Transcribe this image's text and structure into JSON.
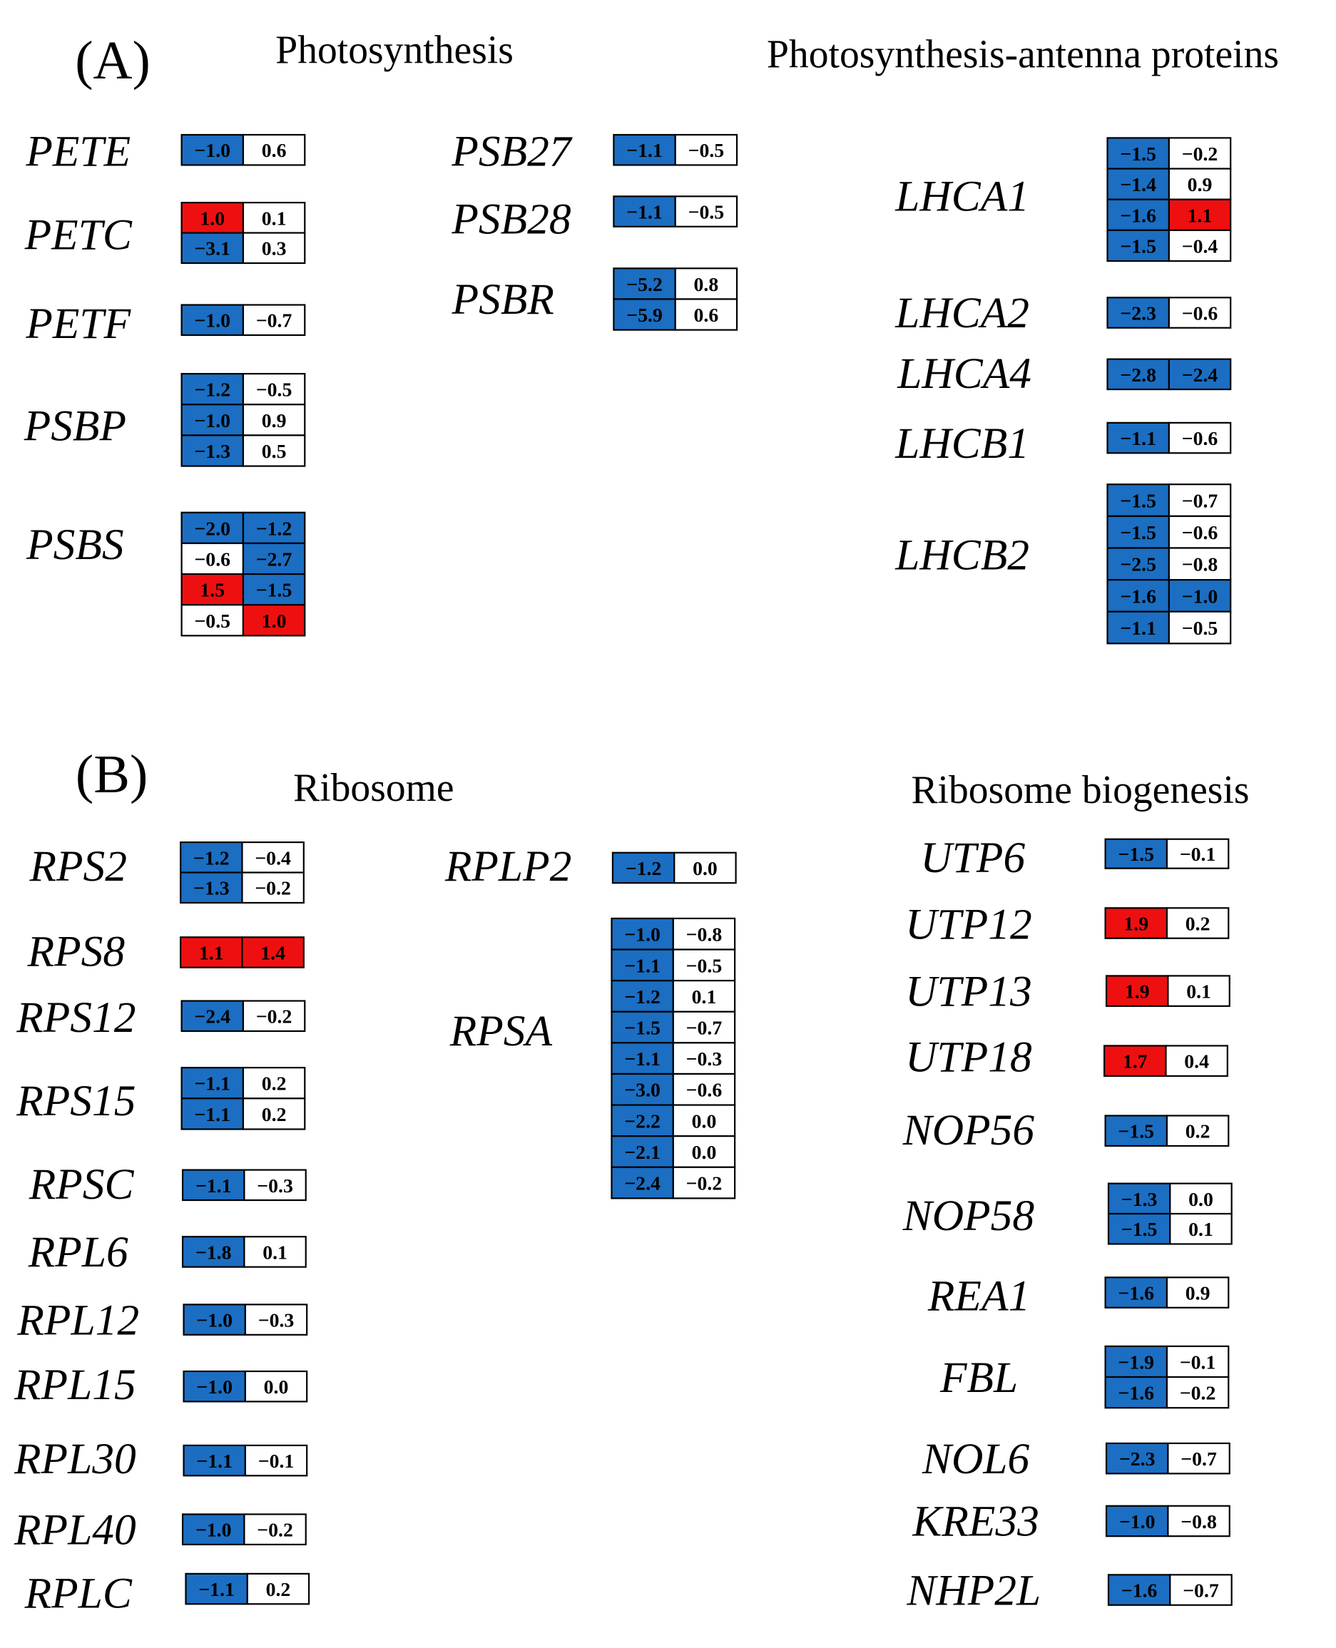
{
  "panels": [
    {
      "label": "(A)",
      "sections": [
        {
          "title": "Photosynthesis",
          "genes": [
            {
              "name": "PETE",
              "rows": [
                [
                  "−1.0",
                  "0.6"
                ]
              ]
            },
            {
              "name": "PETC",
              "rows": [
                [
                  "1.0",
                  "0.1"
                ],
                [
                  "−3.1",
                  "0.3"
                ]
              ]
            },
            {
              "name": "PETF",
              "rows": [
                [
                  "−1.0",
                  "−0.7"
                ]
              ]
            },
            {
              "name": "PSBP",
              "rows": [
                [
                  "−1.2",
                  "−0.5"
                ],
                [
                  "−1.0",
                  "0.9"
                ],
                [
                  "−1.3",
                  "0.5"
                ]
              ]
            },
            {
              "name": "PSBS",
              "rows": [
                [
                  "−2.0",
                  "−1.2"
                ],
                [
                  "−0.6",
                  "−2.7"
                ],
                [
                  "1.5",
                  "−1.5"
                ],
                [
                  "−0.5",
                  "1.0"
                ]
              ]
            },
            {
              "name": "PSB27",
              "rows": [
                [
                  "−1.1",
                  "−0.5"
                ]
              ]
            },
            {
              "name": "PSB28",
              "rows": [
                [
                  "−1.1",
                  "−0.5"
                ]
              ]
            },
            {
              "name": "PSBR",
              "rows": [
                [
                  "−5.2",
                  "0.8"
                ],
                [
                  "−5.9",
                  "0.6"
                ]
              ]
            }
          ]
        },
        {
          "title": "Photosynthesis-antenna proteins",
          "genes": [
            {
              "name": "LHCA1",
              "rows": [
                [
                  "−1.5",
                  "−0.2"
                ],
                [
                  "−1.4",
                  "0.9"
                ],
                [
                  "−1.6",
                  "1.1"
                ],
                [
                  "−1.5",
                  "−0.4"
                ]
              ]
            },
            {
              "name": "LHCA2",
              "rows": [
                [
                  "−2.3",
                  "−0.6"
                ]
              ]
            },
            {
              "name": "LHCA4",
              "rows": [
                [
                  "−2.8",
                  "−2.4"
                ]
              ]
            },
            {
              "name": "LHCB1",
              "rows": [
                [
                  "−1.1",
                  "−0.6"
                ]
              ]
            },
            {
              "name": "LHCB2",
              "rows": [
                [
                  "−1.5",
                  "−0.7"
                ],
                [
                  "−1.5",
                  "−0.6"
                ],
                [
                  "−2.5",
                  "−0.8"
                ],
                [
                  "−1.6",
                  "−1.0"
                ],
                [
                  "−1.1",
                  "−0.5"
                ]
              ]
            }
          ]
        }
      ]
    },
    {
      "label": "(B)",
      "sections": [
        {
          "title": "Ribosome",
          "genes": [
            {
              "name": "RPS2",
              "rows": [
                [
                  "−1.2",
                  "−0.4"
                ],
                [
                  "−1.3",
                  "−0.2"
                ]
              ]
            },
            {
              "name": "RPS8",
              "rows": [
                [
                  "1.1",
                  "1.4"
                ]
              ]
            },
            {
              "name": "RPS12",
              "rows": [
                [
                  "−2.4",
                  "−0.2"
                ]
              ]
            },
            {
              "name": "RPS15",
              "rows": [
                [
                  "−1.1",
                  "0.2"
                ],
                [
                  "−1.1",
                  "0.2"
                ]
              ]
            },
            {
              "name": "RPSC",
              "rows": [
                [
                  "−1.1",
                  "−0.3"
                ]
              ]
            },
            {
              "name": "RPL6",
              "rows": [
                [
                  "−1.8",
                  "0.1"
                ]
              ]
            },
            {
              "name": "RPL12",
              "rows": [
                [
                  "−1.0",
                  "−0.3"
                ]
              ]
            },
            {
              "name": "RPL15",
              "rows": [
                [
                  "−1.0",
                  "0.0"
                ]
              ]
            },
            {
              "name": "RPL30",
              "rows": [
                [
                  "−1.1",
                  "−0.1"
                ]
              ]
            },
            {
              "name": "RPL40",
              "rows": [
                [
                  "−1.0",
                  "−0.2"
                ]
              ]
            },
            {
              "name": "RPLC",
              "rows": [
                [
                  "−1.1",
                  "0.2"
                ]
              ]
            },
            {
              "name": "RPLP2",
              "rows": [
                [
                  "−1.2",
                  "0.0"
                ]
              ]
            },
            {
              "name": "RPSA",
              "rows": [
                [
                  "−1.0",
                  "−0.8"
                ],
                [
                  "−1.1",
                  "−0.5"
                ],
                [
                  "−1.2",
                  "0.1"
                ],
                [
                  "−1.5",
                  "−0.7"
                ],
                [
                  "−1.1",
                  "−0.3"
                ],
                [
                  "−3.0",
                  "−0.6"
                ],
                [
                  "−2.2",
                  "0.0"
                ],
                [
                  "−2.1",
                  "0.0"
                ],
                [
                  "−2.4",
                  "−0.2"
                ]
              ]
            }
          ]
        },
        {
          "title": "Ribosome biogenesis",
          "genes": [
            {
              "name": "UTP6",
              "rows": [
                [
                  "−1.5",
                  "−0.1"
                ]
              ]
            },
            {
              "name": "UTP12",
              "rows": [
                [
                  "1.9",
                  "0.2"
                ]
              ]
            },
            {
              "name": "UTP13",
              "rows": [
                [
                  "1.9",
                  "0.1"
                ]
              ]
            },
            {
              "name": "UTP18",
              "rows": [
                [
                  "1.7",
                  "0.4"
                ]
              ]
            },
            {
              "name": "NOP56",
              "rows": [
                [
                  "−1.5",
                  "0.2"
                ]
              ]
            },
            {
              "name": "NOP58",
              "rows": [
                [
                  "−1.3",
                  "0.0"
                ],
                [
                  "−1.5",
                  "0.1"
                ]
              ]
            },
            {
              "name": "REA1",
              "rows": [
                [
                  "−1.6",
                  "0.9"
                ]
              ]
            },
            {
              "name": "FBL",
              "rows": [
                [
                  "−1.9",
                  "−0.1"
                ],
                [
                  "−1.6",
                  "−0.2"
                ]
              ]
            },
            {
              "name": "NOL6",
              "rows": [
                [
                  "−2.3",
                  "−0.7"
                ]
              ]
            },
            {
              "name": "KRE33",
              "rows": [
                [
                  "−1.0",
                  "−0.8"
                ]
              ]
            },
            {
              "name": "NHP2L",
              "rows": [
                [
                  "−1.6",
                  "−0.7"
                ]
              ]
            }
          ]
        }
      ]
    }
  ]
}
